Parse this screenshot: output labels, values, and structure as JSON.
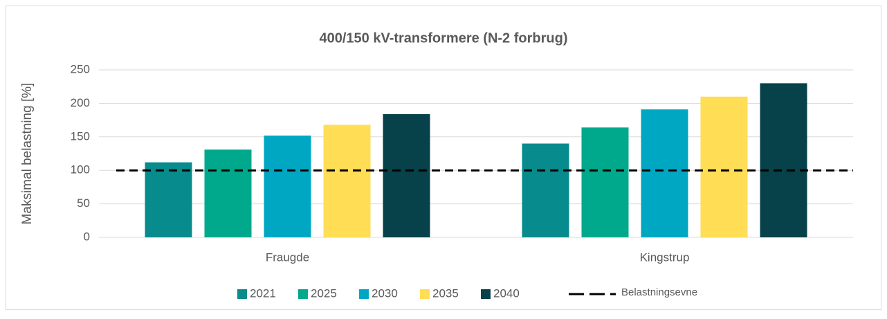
{
  "chart_data": {
    "type": "bar",
    "title": "400/150 kV-transformere (N-2 forbrug)",
    "y_label": "Maksimal belastning [%]",
    "categories": [
      "Fraugde",
      "Kingstrup"
    ],
    "series": [
      {
        "name": "2021",
        "color": "#078b8c",
        "values": [
          112,
          140
        ]
      },
      {
        "name": "2025",
        "color": "#00a98b",
        "values": [
          131,
          164
        ]
      },
      {
        "name": "2030",
        "color": "#00a7c2",
        "values": [
          152,
          191
        ]
      },
      {
        "name": "2035",
        "color": "#ffdd55",
        "values": [
          168,
          210
        ]
      },
      {
        "name": "2040",
        "color": "#07414a",
        "values": [
          184,
          230
        ]
      }
    ],
    "lines": [
      {
        "name": "Belastningsevne",
        "type": "line",
        "color": "#000000",
        "dashed": true,
        "values": [
          100,
          100
        ]
      }
    ],
    "ylim": [
      0,
      250
    ],
    "yticks": [
      0,
      50,
      100,
      150,
      200,
      250
    ],
    "grid": true,
    "legend": "bottom"
  }
}
